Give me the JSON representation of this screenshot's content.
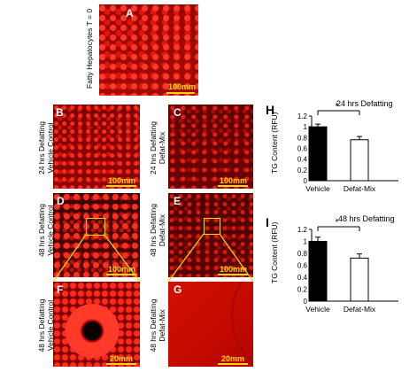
{
  "panels": {
    "A": {
      "letter": "A",
      "side_label": "Fatty Hepatocytes T = 0",
      "scale": "100mm"
    },
    "B": {
      "letter": "B",
      "side_label_1": "24 hrs Defatting",
      "side_label_2": "Vehicle Control",
      "scale": "100mm"
    },
    "C": {
      "letter": "C",
      "side_label_1": "24 hrs Defatting",
      "side_label_2": "Defat-Mix",
      "scale": "100mm"
    },
    "D": {
      "letter": "D",
      "side_label_1": "48 hrs Defatting",
      "side_label_2": "Vehicle Control",
      "scale": "100mm"
    },
    "E": {
      "letter": "E",
      "side_label_1": "48 hrs Defatting",
      "side_label_2": "Defat-Mix",
      "scale": "100mm"
    },
    "F": {
      "letter": "F",
      "side_label_1": "48 hrs Defatting",
      "side_label_2": "Vehicle Control",
      "scale": "20mm"
    },
    "G": {
      "letter": "G",
      "side_label_1": "48 hrs Defatting",
      "side_label_2": "Defat-Mix",
      "scale": "20mm"
    }
  },
  "colors": {
    "micrograph": "#c81000",
    "scale_bar": "#ffd700",
    "inset_box": "#e8e000",
    "vehicle_bar": "#000000",
    "defat_bar": "#ffffff"
  },
  "chart_data": [
    {
      "panel": "H",
      "type": "bar",
      "title": "24 hrs Defatting",
      "ylabel": "TG Content (RFU)",
      "categories": [
        "Vehicle",
        "Defat-Mix"
      ],
      "values": [
        1.0,
        0.76
      ],
      "errors": [
        0.05,
        0.06
      ],
      "yticks": [
        "0",
        "0.2",
        "0.4",
        "0.6",
        "0.8",
        "1",
        "1.2"
      ],
      "ylim": [
        0,
        1.2
      ],
      "significance": "*"
    },
    {
      "panel": "I",
      "type": "bar",
      "title": "48 hrs Defatting",
      "ylabel": "TG Content (RFU)",
      "categories": [
        "Vehicle",
        "Defat-Mix"
      ],
      "values": [
        1.0,
        0.72
      ],
      "errors": [
        0.07,
        0.07
      ],
      "yticks": [
        "0",
        "0.2",
        "0.4",
        "0.6",
        "0.8",
        "1",
        "1.2"
      ],
      "ylim": [
        0,
        1.2
      ],
      "significance": "*"
    }
  ]
}
